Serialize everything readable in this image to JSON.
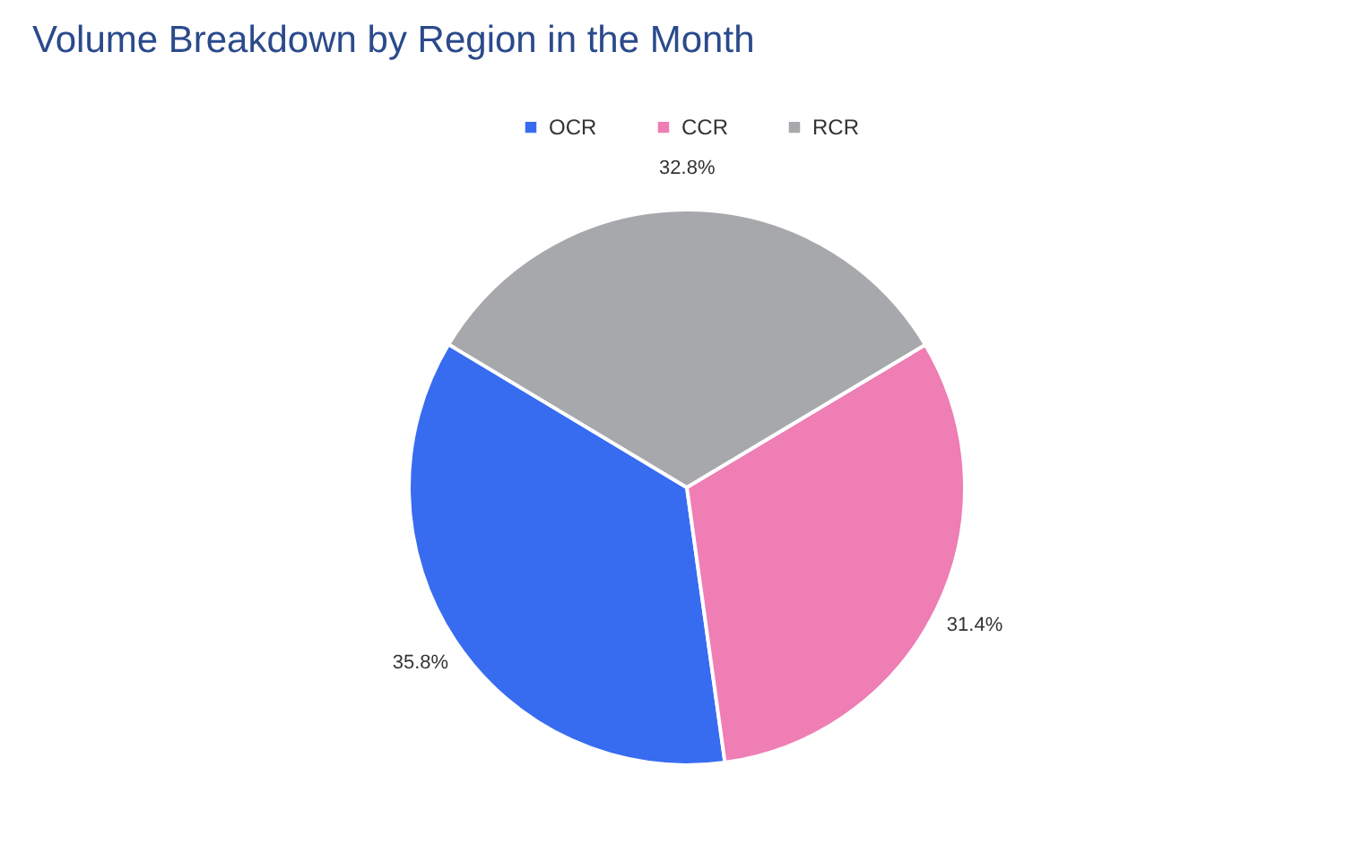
{
  "chart_data": {
    "type": "pie",
    "title": "Volume Breakdown by Region in the Month",
    "categories": [
      "OCR",
      "CCR",
      "RCR"
    ],
    "values": [
      35.8,
      31.4,
      32.8
    ],
    "value_labels": [
      "35.8%",
      "31.4%",
      "32.8%"
    ],
    "colors": [
      "#386cf0",
      "#ee7eb4",
      "#a7a8ab"
    ],
    "legend": "top"
  }
}
